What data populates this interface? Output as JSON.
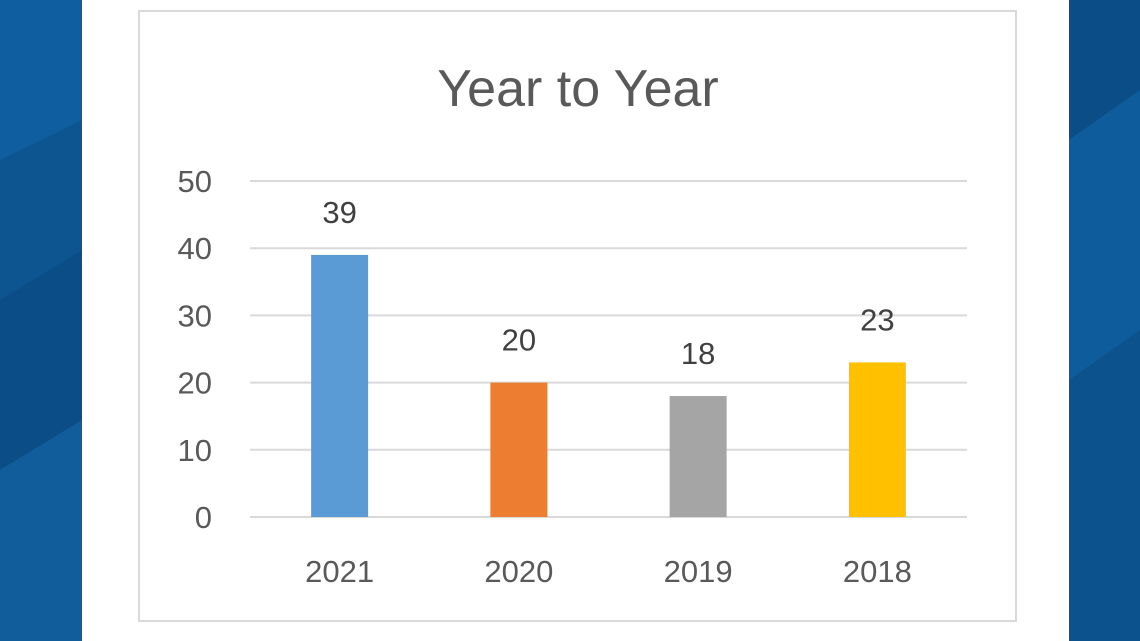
{
  "chart_data": {
    "type": "bar",
    "title": "Year to Year",
    "categories": [
      "2021",
      "2020",
      "2019",
      "2018"
    ],
    "values": [
      39,
      20,
      18,
      23
    ],
    "bar_colors": [
      "#5b9bd5",
      "#ed7d31",
      "#a5a5a5",
      "#ffc000"
    ],
    "ylim": [
      0,
      50
    ],
    "yticks": [
      0,
      10,
      20,
      30,
      40,
      50
    ],
    "grid": true,
    "data_labels": true,
    "legend": "none"
  },
  "colors": {
    "background": "#0d5591",
    "panel": "#ffffff",
    "gridline": "#d9d9d9",
    "text": "#595959"
  }
}
